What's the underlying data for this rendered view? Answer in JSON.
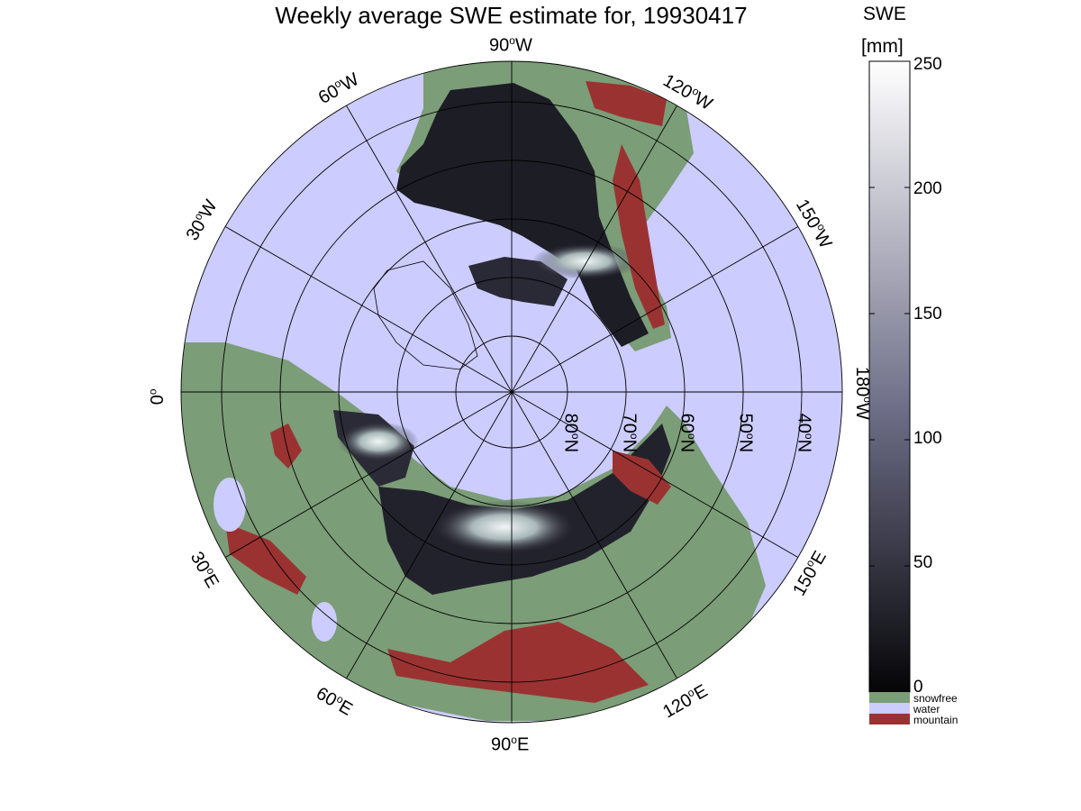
{
  "title": "Weekly average SWE estimate for, 19930417",
  "colorbar": {
    "label_line1": "SWE",
    "label_line2": "[mm]",
    "ticks": [
      "250",
      "200",
      "150",
      "100",
      "50",
      "0"
    ],
    "tick_values": [
      250,
      200,
      150,
      100,
      50,
      0
    ],
    "min": 0,
    "max": 250,
    "colors": {
      "low": "#050507",
      "mid": "#6e6e88",
      "high": "#ffffff"
    }
  },
  "legend": [
    {
      "label": "snowfree",
      "color": "#7b9d77"
    },
    {
      "label": "water",
      "color": "#ccccfe"
    },
    {
      "label": "mountain",
      "color": "#9b3232"
    }
  ],
  "map": {
    "projection": "north polar stereographic",
    "background_water": "#ccccfe",
    "land_snowfree": "#7b9d77",
    "mountain": "#9b3232",
    "snow_dark": "#1a1a22",
    "longitude_labels": [
      {
        "deg": "90",
        "dir": "W"
      },
      {
        "deg": "60",
        "dir": "W"
      },
      {
        "deg": "30",
        "dir": "W"
      },
      {
        "deg": "0",
        "dir": ""
      },
      {
        "deg": "30",
        "dir": "E"
      },
      {
        "deg": "60",
        "dir": "E"
      },
      {
        "deg": "90",
        "dir": "E"
      },
      {
        "deg": "120",
        "dir": "E"
      },
      {
        "deg": "150",
        "dir": "E"
      },
      {
        "deg": "180",
        "dir": "W"
      },
      {
        "deg": "150",
        "dir": "W"
      },
      {
        "deg": "120",
        "dir": "W"
      }
    ],
    "latitude_labels": [
      {
        "deg": "80",
        "dir": "N"
      },
      {
        "deg": "70",
        "dir": "N"
      },
      {
        "deg": "60",
        "dir": "N"
      },
      {
        "deg": "50",
        "dir": "N"
      },
      {
        "deg": "40",
        "dir": "N"
      }
    ]
  }
}
